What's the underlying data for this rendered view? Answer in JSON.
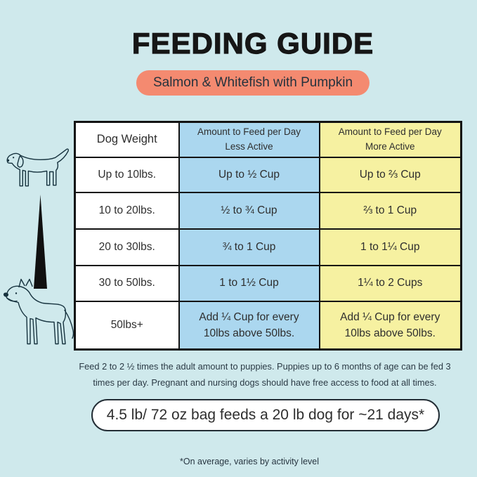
{
  "header": {
    "title": "FEEDING GUIDE",
    "flavor_badge": "Salmon & Whitefish with Pumpkin"
  },
  "colors": {
    "background": "#cfe9ec",
    "badge": "#f48a70",
    "badge_text": "#25323d",
    "table_border": "#131313",
    "col_weight_bg": "#ffffff",
    "col_less_active_bg": "#abd7ef",
    "col_more_active_bg": "#f6f1a1",
    "pill_bg": "#ffffff",
    "ink": "#2e2e2e"
  },
  "illustrations": {
    "small_dog": "dachshund-line-art",
    "size_indicator": "black-wedge-small-to-large",
    "large_dog": "great-dane-line-art"
  },
  "table": {
    "columns": [
      {
        "id": "weight",
        "header_lines": [
          "Dog Weight"
        ],
        "bg": "#ffffff"
      },
      {
        "id": "less_active",
        "header_lines": [
          "Amount to Feed per Day",
          "Less Active"
        ],
        "bg": "#abd7ef"
      },
      {
        "id": "more_active",
        "header_lines": [
          "Amount to Feed per Day",
          "More Active"
        ],
        "bg": "#f6f1a1"
      }
    ],
    "rows": [
      [
        "Up to 10lbs.",
        "Up to ½ Cup",
        "Up to ⅔ Cup"
      ],
      [
        "10 to 20lbs.",
        "½ to ¾ Cup",
        "⅔ to 1 Cup"
      ],
      [
        "20 to 30lbs.",
        "¾ to 1 Cup",
        "1 to 1¼ Cup"
      ],
      [
        "30 to 50lbs.",
        "1 to 1½ Cup",
        "1¼ to 2 Cups"
      ],
      [
        "50lbs+",
        [
          "Add ¼ Cup for every",
          "10lbs above 50lbs."
        ],
        [
          "Add ¼ Cup for every",
          "10lbs above 50lbs."
        ]
      ]
    ]
  },
  "notes": {
    "puppy_feeding_lines": [
      "Feed 2 to 2 ½ times the adult amount to puppies. Puppies up to 6 months of age can be fed 3",
      "times per day. Pregnant and nursing dogs should have free access to food at all times."
    ],
    "bag_callout": "4.5 lb/ 72 oz bag feeds a 20 lb dog for ~21 days*",
    "disclaimer": "*On average, varies by activity level"
  }
}
